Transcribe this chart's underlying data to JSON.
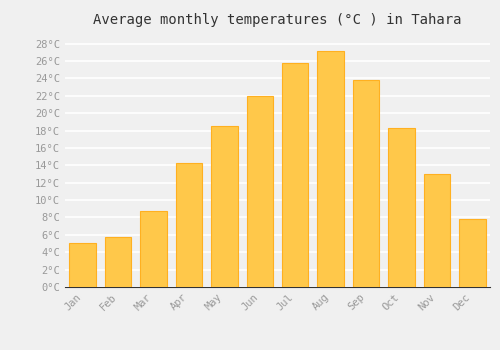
{
  "months": [
    "Jan",
    "Feb",
    "Mar",
    "Apr",
    "May",
    "Jun",
    "Jul",
    "Aug",
    "Sep",
    "Oct",
    "Nov",
    "Dec"
  ],
  "temperatures": [
    5.1,
    5.7,
    8.7,
    14.3,
    18.5,
    22.0,
    25.8,
    27.2,
    23.8,
    18.3,
    13.0,
    7.8
  ],
  "bar_color": "#FFC84A",
  "bar_edge_color": "#FFB020",
  "title": "Average monthly temperatures (°C ) in Tahara",
  "title_fontsize": 10,
  "ylim": [
    0,
    29
  ],
  "ytick_step": 2,
  "background_color": "#f0f0f0",
  "grid_color": "#ffffff",
  "tick_label_color": "#999999",
  "tick_fontsize": 7.5,
  "bar_width": 0.75
}
